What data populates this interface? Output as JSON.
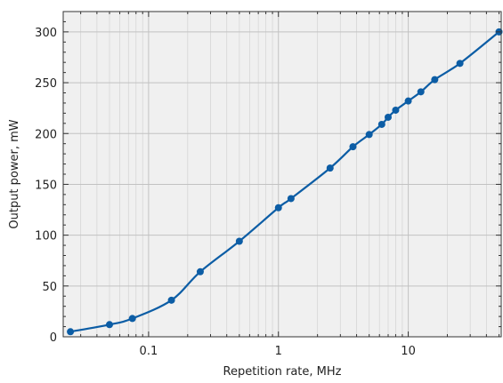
{
  "chart_data": {
    "type": "line",
    "x_scale": "log",
    "xlabel": "Repetition rate, MHz",
    "ylabel": "Output power, mW",
    "xlim": [
      0.022,
      52
    ],
    "ylim": [
      0,
      320
    ],
    "x_ticks": [
      {
        "value": 0.1,
        "label": "0.1"
      },
      {
        "value": 1,
        "label": "1"
      },
      {
        "value": 10,
        "label": "10"
      }
    ],
    "y_ticks": [
      {
        "value": 0,
        "label": "0"
      },
      {
        "value": 50,
        "label": "50"
      },
      {
        "value": 100,
        "label": "100"
      },
      {
        "value": 150,
        "label": "150"
      },
      {
        "value": 200,
        "label": "200"
      },
      {
        "value": 250,
        "label": "250"
      },
      {
        "value": 300,
        "label": "300"
      }
    ],
    "grid": true,
    "series": [
      {
        "color": "#0c5da5",
        "x": [
          0.025,
          0.05,
          0.075,
          0.15,
          0.25,
          0.5,
          1,
          1.25,
          2.5,
          3.75,
          5,
          6.25,
          7,
          8,
          10,
          12.5,
          16,
          25,
          50
        ],
        "y": [
          5,
          12,
          18,
          36,
          64,
          94,
          127,
          136,
          166,
          187,
          199,
          209,
          216,
          223,
          232,
          241,
          253,
          269,
          300
        ]
      }
    ]
  },
  "colors": {
    "plot_background": "#f0f0f0",
    "grid_major": "#c2c2c2",
    "grid_minor": "#d6d6d6",
    "series": "#0c5da5"
  }
}
